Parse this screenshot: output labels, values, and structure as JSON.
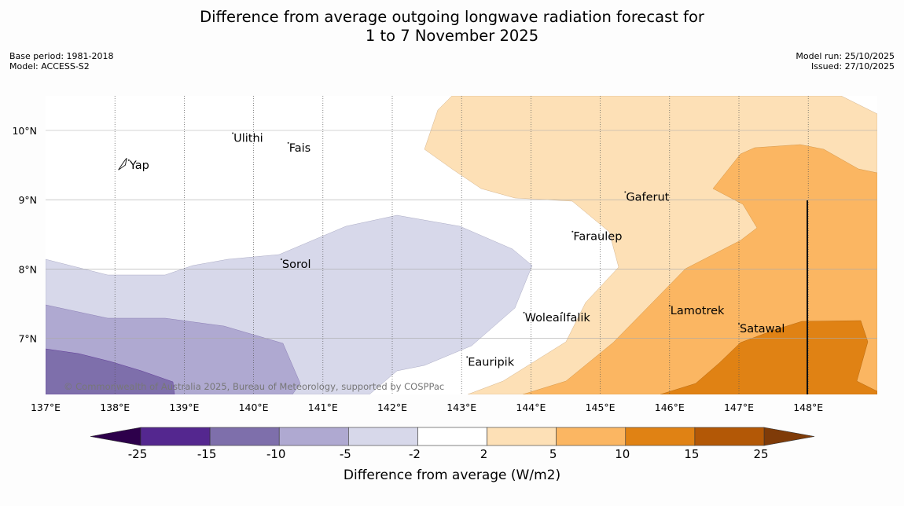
{
  "title": {
    "line1": "Difference from average outgoing longwave radiation forecast for",
    "line2": "1 to 7 November 2025"
  },
  "meta": {
    "base_period": "Base period: 1981-2018",
    "model": "Model: ACCESS-S2",
    "model_run": "Model run: 25/10/2025",
    "issued": "Issued: 27/10/2025"
  },
  "map": {
    "lon_range": [
      137,
      149
    ],
    "lat_range": [
      6.2,
      10.5
    ],
    "lon_ticks": [
      "137°E",
      "138°E",
      "139°E",
      "140°E",
      "141°E",
      "142°E",
      "143°E",
      "144°E",
      "145°E",
      "146°E",
      "147°E",
      "148°E"
    ],
    "lat_ticks": [
      "10°N",
      "9°N",
      "8°N",
      "7°N"
    ],
    "places": [
      {
        "name": "Ulithi",
        "lon": 139.7,
        "lat": 9.87
      },
      {
        "name": "Fais",
        "lon": 140.5,
        "lat": 9.73
      },
      {
        "name": "Yap",
        "lon": 138.2,
        "lat": 9.48
      },
      {
        "name": "Gaferut",
        "lon": 145.36,
        "lat": 9.02
      },
      {
        "name": "Faraulep",
        "lon": 144.6,
        "lat": 8.45
      },
      {
        "name": "Sorol",
        "lon": 140.4,
        "lat": 8.05
      },
      {
        "name": "Lamotrek",
        "lon": 146.0,
        "lat": 7.38
      },
      {
        "name": "Woleai",
        "lon": 143.9,
        "lat": 7.28
      },
      {
        "name": "Ifalik",
        "lon": 144.45,
        "lat": 7.28
      },
      {
        "name": "Satawal",
        "lon": 147.0,
        "lat": 7.12
      },
      {
        "name": "Eauripik",
        "lon": 143.08,
        "lat": 6.64
      }
    ],
    "copyright": "© Commonwealth of Australia 2025, Bureau of Meteorology, supported by COSPPac"
  },
  "colorbar": {
    "labels": [
      "-25",
      "-15",
      "-10",
      "-5",
      "-2",
      "2",
      "5",
      "10",
      "15",
      "25"
    ],
    "colors": [
      "#54278f",
      "#7e6fab",
      "#afa9d1",
      "#d7d8ea",
      "#ffffff",
      "#fde0b6",
      "#fbb662",
      "#e08214",
      "#b35806"
    ],
    "under_color": "#2d004b",
    "over_color": "#7f3b08",
    "title": "Difference from average (W/m2)"
  }
}
